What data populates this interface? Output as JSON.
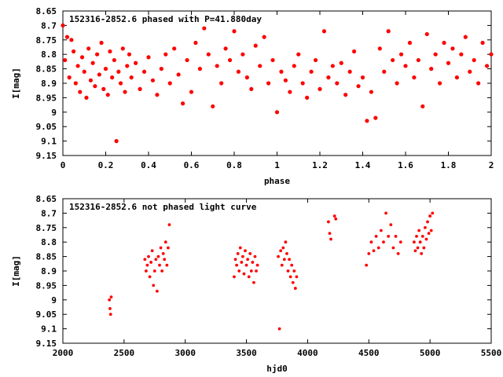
{
  "chart_data": [
    {
      "type": "scatter",
      "title": "152316-2852.6 phased with P=41.880day",
      "xlabel": "phase",
      "ylabel": "I[mag]",
      "xlim": [
        0,
        2
      ],
      "ylim": [
        8.65,
        9.15
      ],
      "y_inverted": true,
      "grid": false,
      "marker_color": "#ff0000",
      "marker": "filled-circle",
      "xticks": [
        "0",
        "0.2",
        "0.4",
        "0.6",
        "0.8",
        "1",
        "1.2",
        "1.4",
        "1.6",
        "1.8",
        "2"
      ],
      "yticks": [
        "8.65",
        "8.7",
        "8.75",
        "8.8",
        "8.85",
        "8.9",
        "8.95",
        "9",
        "9.05",
        "9.1",
        "9.15"
      ],
      "series": [
        {
          "points": [
            [
              0.0,
              8.7
            ],
            [
              0.01,
              8.82
            ],
            [
              0.02,
              8.74
            ],
            [
              0.03,
              8.88
            ],
            [
              0.04,
              8.75
            ],
            [
              0.05,
              8.79
            ],
            [
              0.06,
              8.9
            ],
            [
              0.07,
              8.84
            ],
            [
              0.08,
              8.93
            ],
            [
              0.09,
              8.81
            ],
            [
              0.1,
              8.86
            ],
            [
              0.11,
              8.95
            ],
            [
              0.12,
              8.78
            ],
            [
              0.13,
              8.89
            ],
            [
              0.14,
              8.83
            ],
            [
              0.15,
              8.91
            ],
            [
              0.16,
              8.8
            ],
            [
              0.17,
              8.87
            ],
            [
              0.18,
              8.76
            ],
            [
              0.19,
              8.92
            ],
            [
              0.2,
              8.85
            ],
            [
              0.21,
              8.94
            ],
            [
              0.22,
              8.79
            ],
            [
              0.23,
              8.88
            ],
            [
              0.24,
              8.82
            ],
            [
              0.25,
              9.1
            ],
            [
              0.26,
              8.86
            ],
            [
              0.27,
              8.9
            ],
            [
              0.28,
              8.78
            ],
            [
              0.29,
              8.93
            ],
            [
              0.3,
              8.84
            ],
            [
              0.31,
              8.8
            ],
            [
              0.32,
              8.88
            ],
            [
              0.34,
              8.83
            ],
            [
              0.36,
              8.92
            ],
            [
              0.38,
              8.86
            ],
            [
              0.4,
              8.81
            ],
            [
              0.42,
              8.89
            ],
            [
              0.44,
              8.94
            ],
            [
              0.46,
              8.85
            ],
            [
              0.48,
              8.8
            ],
            [
              0.5,
              8.9
            ],
            [
              0.52,
              8.78
            ],
            [
              0.54,
              8.87
            ],
            [
              0.56,
              8.97
            ],
            [
              0.58,
              8.82
            ],
            [
              0.6,
              8.93
            ],
            [
              0.62,
              8.76
            ],
            [
              0.64,
              8.85
            ],
            [
              0.66,
              8.71
            ],
            [
              0.68,
              8.8
            ],
            [
              0.7,
              8.98
            ],
            [
              0.72,
              8.84
            ],
            [
              0.74,
              8.9
            ],
            [
              0.76,
              8.78
            ],
            [
              0.78,
              8.82
            ],
            [
              0.8,
              8.72
            ],
            [
              0.82,
              8.86
            ],
            [
              0.84,
              8.8
            ],
            [
              0.86,
              8.88
            ],
            [
              0.88,
              8.92
            ],
            [
              0.9,
              8.77
            ],
            [
              0.92,
              8.84
            ],
            [
              0.94,
              8.74
            ],
            [
              0.96,
              8.9
            ],
            [
              0.98,
              8.82
            ],
            [
              1.0,
              9.0
            ],
            [
              1.02,
              8.86
            ],
            [
              1.04,
              8.89
            ],
            [
              1.06,
              8.93
            ],
            [
              1.08,
              8.84
            ],
            [
              1.1,
              8.8
            ],
            [
              1.12,
              8.9
            ],
            [
              1.14,
              8.95
            ],
            [
              1.16,
              8.86
            ],
            [
              1.18,
              8.82
            ],
            [
              1.2,
              8.92
            ],
            [
              1.22,
              8.72
            ],
            [
              1.24,
              8.88
            ],
            [
              1.26,
              8.84
            ],
            [
              1.28,
              8.9
            ],
            [
              1.3,
              8.83
            ],
            [
              1.32,
              8.94
            ],
            [
              1.34,
              8.86
            ],
            [
              1.36,
              8.79
            ],
            [
              1.38,
              8.91
            ],
            [
              1.4,
              8.88
            ],
            [
              1.42,
              9.03
            ],
            [
              1.44,
              8.93
            ],
            [
              1.46,
              9.02
            ],
            [
              1.48,
              8.78
            ],
            [
              1.5,
              8.86
            ],
            [
              1.52,
              8.72
            ],
            [
              1.54,
              8.82
            ],
            [
              1.56,
              8.9
            ],
            [
              1.58,
              8.8
            ],
            [
              1.6,
              8.84
            ],
            [
              1.62,
              8.76
            ],
            [
              1.64,
              8.88
            ],
            [
              1.66,
              8.82
            ],
            [
              1.68,
              8.98
            ],
            [
              1.7,
              8.73
            ],
            [
              1.72,
              8.85
            ],
            [
              1.74,
              8.8
            ],
            [
              1.76,
              8.9
            ],
            [
              1.78,
              8.76
            ],
            [
              1.8,
              8.83
            ],
            [
              1.82,
              8.78
            ],
            [
              1.84,
              8.88
            ],
            [
              1.86,
              8.8
            ],
            [
              1.88,
              8.74
            ],
            [
              1.9,
              8.86
            ],
            [
              1.92,
              8.82
            ],
            [
              1.94,
              8.9
            ],
            [
              1.96,
              8.76
            ],
            [
              1.98,
              8.84
            ],
            [
              2.0,
              8.8
            ]
          ]
        }
      ]
    },
    {
      "type": "scatter",
      "title": "152316-2852.6 not phased light curve",
      "xlabel": "hjd0",
      "ylabel": "I[mag]",
      "xlim": [
        2000,
        5500
      ],
      "ylim": [
        8.65,
        9.15
      ],
      "y_inverted": true,
      "grid": false,
      "marker_color": "#ff0000",
      "marker": "filled-circle",
      "xticks": [
        "2000",
        "2500",
        "3000",
        "3500",
        "4000",
        "4500",
        "5000",
        "5500"
      ],
      "yticks": [
        "8.65",
        "8.7",
        "8.75",
        "8.8",
        "8.85",
        "8.9",
        "8.95",
        "9",
        "9.05",
        "9.1",
        "9.15"
      ],
      "series": [
        {
          "points": [
            [
              2380,
              9.0
            ],
            [
              2385,
              9.03
            ],
            [
              2390,
              9.05
            ],
            [
              2395,
              8.99
            ],
            [
              2670,
              8.86
            ],
            [
              2680,
              8.9
            ],
            [
              2690,
              8.88
            ],
            [
              2700,
              8.85
            ],
            [
              2710,
              8.92
            ],
            [
              2720,
              8.87
            ],
            [
              2730,
              8.83
            ],
            [
              2740,
              8.95
            ],
            [
              2750,
              8.9
            ],
            [
              2760,
              8.86
            ],
            [
              2770,
              8.97
            ],
            [
              2780,
              8.85
            ],
            [
              2790,
              8.88
            ],
            [
              2800,
              8.82
            ],
            [
              2810,
              8.9
            ],
            [
              2820,
              8.84
            ],
            [
              2830,
              8.86
            ],
            [
              2840,
              8.8
            ],
            [
              2850,
              8.88
            ],
            [
              2860,
              8.82
            ],
            [
              2870,
              8.74
            ],
            [
              3400,
              8.92
            ],
            [
              3410,
              8.86
            ],
            [
              3420,
              8.88
            ],
            [
              3430,
              8.84
            ],
            [
              3440,
              8.9
            ],
            [
              3450,
              8.82
            ],
            [
              3460,
              8.87
            ],
            [
              3470,
              8.85
            ],
            [
              3480,
              8.91
            ],
            [
              3490,
              8.83
            ],
            [
              3500,
              8.88
            ],
            [
              3510,
              8.86
            ],
            [
              3520,
              8.92
            ],
            [
              3530,
              8.84
            ],
            [
              3540,
              8.9
            ],
            [
              3550,
              8.87
            ],
            [
              3560,
              8.94
            ],
            [
              3570,
              8.85
            ],
            [
              3580,
              8.9
            ],
            [
              3590,
              8.88
            ],
            [
              3760,
              8.85
            ],
            [
              3770,
              9.1
            ],
            [
              3780,
              8.83
            ],
            [
              3790,
              8.88
            ],
            [
              3800,
              8.82
            ],
            [
              3810,
              8.86
            ],
            [
              3820,
              8.8
            ],
            [
              3830,
              8.84
            ],
            [
              3840,
              8.9
            ],
            [
              3850,
              8.86
            ],
            [
              3860,
              8.92
            ],
            [
              3870,
              8.88
            ],
            [
              3880,
              8.94
            ],
            [
              3890,
              8.9
            ],
            [
              3900,
              8.96
            ],
            [
              3910,
              8.92
            ],
            [
              4170,
              8.73
            ],
            [
              4180,
              8.77
            ],
            [
              4190,
              8.79
            ],
            [
              4220,
              8.71
            ],
            [
              4230,
              8.72
            ],
            [
              4480,
              8.88
            ],
            [
              4500,
              8.84
            ],
            [
              4520,
              8.8
            ],
            [
              4540,
              8.83
            ],
            [
              4560,
              8.78
            ],
            [
              4580,
              8.82
            ],
            [
              4600,
              8.76
            ],
            [
              4620,
              8.8
            ],
            [
              4640,
              8.7
            ],
            [
              4660,
              8.78
            ],
            [
              4680,
              8.74
            ],
            [
              4700,
              8.82
            ],
            [
              4720,
              8.78
            ],
            [
              4740,
              8.84
            ],
            [
              4760,
              8.8
            ],
            [
              4870,
              8.8
            ],
            [
              4880,
              8.83
            ],
            [
              4890,
              8.78
            ],
            [
              4900,
              8.82
            ],
            [
              4910,
              8.76
            ],
            [
              4920,
              8.8
            ],
            [
              4930,
              8.84
            ],
            [
              4940,
              8.78
            ],
            [
              4950,
              8.82
            ],
            [
              4960,
              8.75
            ],
            [
              4970,
              8.79
            ],
            [
              4980,
              8.73
            ],
            [
              4990,
              8.77
            ],
            [
              5000,
              8.71
            ],
            [
              5010,
              8.76
            ],
            [
              5020,
              8.7
            ]
          ]
        }
      ]
    }
  ]
}
